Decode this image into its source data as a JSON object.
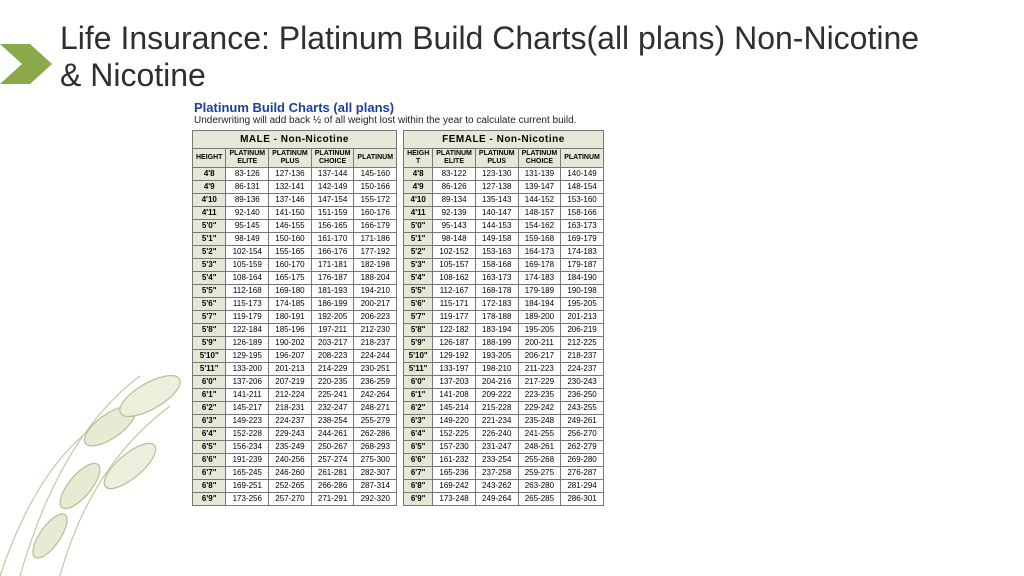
{
  "slide": {
    "title": "Life Insurance: Platinum Build Charts(all plans) Non-Nicotine & Nicotine"
  },
  "chart": {
    "header": "Platinum Build Charts (all plans)",
    "subheader": "Underwriting will add back ½ of all weight lost within the year to calculate current build.",
    "columns": [
      "HEIGHT",
      "PLATINUM ELITE",
      "PLATINUM PLUS",
      "PLATINUM CHOICE",
      "PLATINUM"
    ],
    "columns_f": [
      "HEIGH T",
      "PLATINUM ELITE",
      "PLATINUM PLUS",
      "PLATINUM CHOICE",
      "PLATINUM"
    ],
    "male": {
      "caption": "MALE   -   Non-Nicotine",
      "rows": [
        [
          "4'8",
          "83-126",
          "127-136",
          "137-144",
          "145-160"
        ],
        [
          "4'9",
          "86-131",
          "132-141",
          "142-149",
          "150-166"
        ],
        [
          "4'10",
          "89-136",
          "137-146",
          "147-154",
          "155-172"
        ],
        [
          "4'11",
          "92-140",
          "141-150",
          "151-159",
          "160-176"
        ],
        [
          "5'0\"",
          "95-145",
          "146-155",
          "156-165",
          "166-179"
        ],
        [
          "5'1\"",
          "98-149",
          "150-160",
          "161-170",
          "171-186"
        ],
        [
          "5'2\"",
          "102-154",
          "155-165",
          "166-176",
          "177-192"
        ],
        [
          "5'3\"",
          "105-159",
          "160-170",
          "171-181",
          "182-198"
        ],
        [
          "5'4\"",
          "108-164",
          "165-175",
          "176-187",
          "188-204"
        ],
        [
          "5'5\"",
          "112-168",
          "169-180",
          "181-193",
          "194-210"
        ],
        [
          "5'6\"",
          "115-173",
          "174-185",
          "186-199",
          "200-217"
        ],
        [
          "5'7\"",
          "119-179",
          "180-191",
          "192-205",
          "206-223"
        ],
        [
          "5'8\"",
          "122-184",
          "185-196",
          "197-211",
          "212-230"
        ],
        [
          "5'9\"",
          "126-189",
          "190-202",
          "203-217",
          "218-237"
        ],
        [
          "5'10\"",
          "129-195",
          "196-207",
          "208-223",
          "224-244"
        ],
        [
          "5'11\"",
          "133-200",
          "201-213",
          "214-229",
          "230-251"
        ],
        [
          "6'0\"",
          "137-206",
          "207-219",
          "220-235",
          "236-259"
        ],
        [
          "6'1\"",
          "141-211",
          "212-224",
          "225-241",
          "242-264"
        ],
        [
          "6'2\"",
          "145-217",
          "218-231",
          "232-247",
          "248-271"
        ],
        [
          "6'3\"",
          "149-223",
          "224-237",
          "238-254",
          "255-279"
        ],
        [
          "6'4\"",
          "152-228",
          "229-243",
          "244-261",
          "262-286"
        ],
        [
          "6'5\"",
          "156-234",
          "235-249",
          "250-267",
          "268-293"
        ],
        [
          "6'6\"",
          "191-239",
          "240-256",
          "257-274",
          "275-300"
        ],
        [
          "6'7\"",
          "165-245",
          "246-260",
          "261-281",
          "282-307"
        ],
        [
          "6'8\"",
          "169-251",
          "252-265",
          "266-286",
          "287-314"
        ],
        [
          "6'9\"",
          "173-256",
          "257-270",
          "271-291",
          "292-320"
        ]
      ]
    },
    "female": {
      "caption": "FEMALE   -   Non-Nicotine",
      "rows": [
        [
          "4'8",
          "83-122",
          "123-130",
          "131-139",
          "140-149"
        ],
        [
          "4'9",
          "86-126",
          "127-138",
          "139-147",
          "148-154"
        ],
        [
          "4'10",
          "89-134",
          "135-143",
          "144-152",
          "153-160"
        ],
        [
          "4'11",
          "92-139",
          "140-147",
          "148-157",
          "158-166"
        ],
        [
          "5'0\"",
          "95-143",
          "144-153",
          "154-162",
          "163-173"
        ],
        [
          "5'1\"",
          "98-148",
          "149-158",
          "159-168",
          "169-179"
        ],
        [
          "5'2\"",
          "102-152",
          "153-163",
          "164-173",
          "174-183"
        ],
        [
          "5'3\"",
          "105-157",
          "158-168",
          "169-178",
          "179-187"
        ],
        [
          "5'4\"",
          "108-162",
          "163-173",
          "174-183",
          "184-190"
        ],
        [
          "5'5\"",
          "112-167",
          "168-178",
          "179-189",
          "190-198"
        ],
        [
          "5'6\"",
          "115-171",
          "172-183",
          "184-194",
          "195-205"
        ],
        [
          "5'7\"",
          "119-177",
          "178-188",
          "189-200",
          "201-213"
        ],
        [
          "5'8\"",
          "122-182",
          "183-194",
          "195-205",
          "206-219"
        ],
        [
          "5'9\"",
          "126-187",
          "188-199",
          "200-211",
          "212-225"
        ],
        [
          "5'10\"",
          "129-192",
          "193-205",
          "206-217",
          "218-237"
        ],
        [
          "5'11\"",
          "133-197",
          "198-210",
          "211-223",
          "224-237"
        ],
        [
          "6'0\"",
          "137-203",
          "204-216",
          "217-229",
          "230-243"
        ],
        [
          "6'1\"",
          "141-208",
          "209-222",
          "223-235",
          "236-250"
        ],
        [
          "6'2\"",
          "145-214",
          "215-228",
          "229-242",
          "243-255"
        ],
        [
          "6'3\"",
          "149-220",
          "221-234",
          "235-248",
          "249-261"
        ],
        [
          "6'4\"",
          "152-225",
          "226-240",
          "241-255",
          "256-270"
        ],
        [
          "6'5\"",
          "157-230",
          "231-247",
          "248-261",
          "262-279"
        ],
        [
          "6'6\"",
          "161-232",
          "233-254",
          "255-268",
          "269-280"
        ],
        [
          "6'7\"",
          "165-236",
          "237-258",
          "259-275",
          "276-287"
        ],
        [
          "6'8\"",
          "169-242",
          "243-262",
          "263-280",
          "281-294"
        ],
        [
          "6'9\"",
          "173-248",
          "249-264",
          "265-285",
          "286-301"
        ]
      ]
    }
  },
  "decor": {
    "arrow_color": "#8ba84a",
    "leaf_stroke": "#6d7a3a"
  }
}
